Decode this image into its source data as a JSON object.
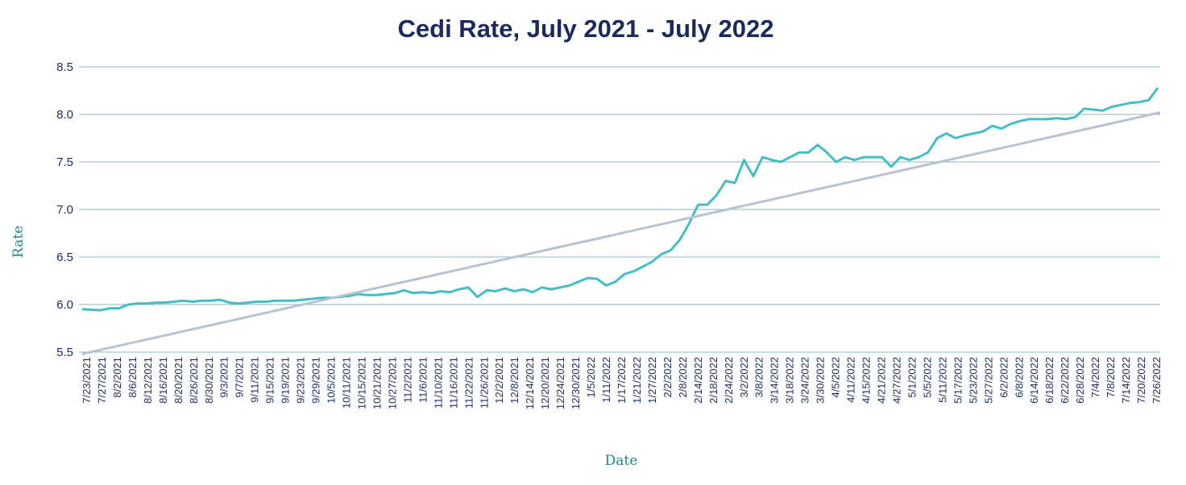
{
  "chart_data": {
    "type": "line",
    "title": "Cedi Rate, July 2021 - July 2022",
    "xlabel": "Date",
    "ylabel": "Rate",
    "ylim": [
      5.5,
      8.5
    ],
    "yticks": [
      "5.5",
      "6.0",
      "6.5",
      "7.0",
      "7.5",
      "8.0",
      "8.5"
    ],
    "grid": "horizontal",
    "xtick_labels": [
      "7/23/2021",
      "7/27/2021",
      "8/2/2021",
      "8/6/2021",
      "8/12/2021",
      "8/16/2021",
      "8/20/2021",
      "8/26/2021",
      "8/30/2021",
      "9/3/2021",
      "9/7/2021",
      "9/11/2021",
      "9/15/2021",
      "9/19/2021",
      "9/23/2021",
      "9/29/2021",
      "10/5/2021",
      "10/11/2021",
      "10/15/2021",
      "10/21/2021",
      "10/27/2021",
      "11/2/2021",
      "11/6/2021",
      "11/10/2021",
      "11/16/2021",
      "11/22/2021",
      "11/26/2021",
      "12/2/2021",
      "12/8/2021",
      "12/14/2021",
      "12/20/2021",
      "12/24/2021",
      "12/30/2021",
      "1/5/2022",
      "1/11/2022",
      "1/17/2022",
      "1/21/2022",
      "1/27/2022",
      "2/2/2022",
      "2/8/2022",
      "2/14/2022",
      "2/18/2022",
      "2/24/2022",
      "3/2/2022",
      "3/8/2022",
      "3/14/2022",
      "3/18/2022",
      "3/24/2022",
      "3/30/2022",
      "4/5/2022",
      "4/11/2022",
      "4/15/2022",
      "4/21/2022",
      "4/27/2022",
      "5/1/2022",
      "5/5/2022",
      "5/11/2022",
      "5/17/2022",
      "5/23/2022",
      "5/27/2022",
      "6/2/2022",
      "6/8/2022",
      "6/14/2022",
      "6/18/2022",
      "6/22/2022",
      "6/28/2022",
      "7/4/2022",
      "7/8/2022",
      "7/14/2022",
      "7/20/2022",
      "7/26/2022"
    ],
    "series": [
      {
        "color": "#45bec3",
        "values": [
          5.95,
          5.945,
          5.94,
          5.96,
          5.96,
          6.0,
          6.01,
          6.01,
          6.02,
          6.02,
          6.03,
          6.04,
          6.03,
          6.04,
          6.04,
          6.05,
          6.02,
          6.01,
          6.02,
          6.03,
          6.03,
          6.04,
          6.04,
          6.04,
          6.05,
          6.06,
          6.07,
          6.07,
          6.08,
          6.09,
          6.11,
          6.1,
          6.1,
          6.11,
          6.12,
          6.15,
          6.12,
          6.13,
          6.12,
          6.14,
          6.13,
          6.16,
          6.18,
          6.08,
          6.15,
          6.14,
          6.17,
          6.14,
          6.16,
          6.13,
          6.18,
          6.16,
          6.18,
          6.2,
          6.24,
          6.28,
          6.27,
          6.2,
          6.24,
          6.32,
          6.35,
          6.4,
          6.45,
          6.53,
          6.57,
          6.68,
          6.85,
          7.05,
          7.05,
          7.15,
          7.3,
          7.28,
          7.52,
          7.35,
          7.55,
          7.52,
          7.5,
          7.55,
          7.6,
          7.6,
          7.68,
          7.6,
          7.5,
          7.55,
          7.52,
          7.55,
          7.55,
          7.55,
          7.45,
          7.55,
          7.52,
          7.55,
          7.6,
          7.75,
          7.8,
          7.75,
          7.78,
          7.8,
          7.82,
          7.88,
          7.85,
          7.9,
          7.93,
          7.95,
          7.95,
          7.95,
          7.96,
          7.95,
          7.97,
          8.06,
          8.05,
          8.04,
          8.08,
          8.1,
          8.12,
          8.13,
          8.15,
          8.28
        ]
      },
      {
        "color": "#b7c3d0",
        "type": "trendline",
        "values": [
          5.48,
          8.02
        ]
      }
    ]
  }
}
